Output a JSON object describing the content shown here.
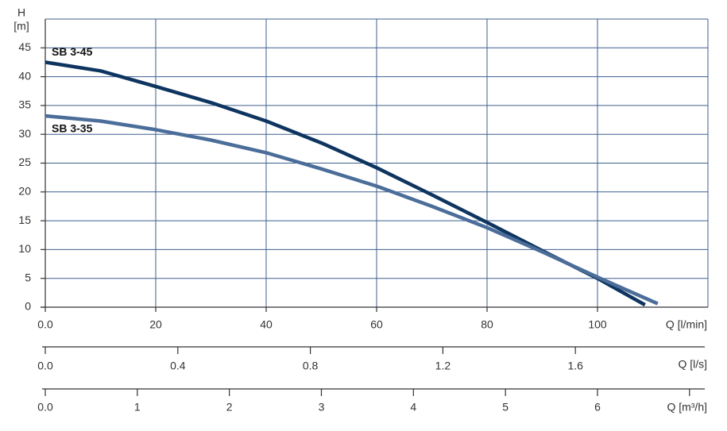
{
  "chart_data": {
    "type": "line",
    "ylabel": "H",
    "yunit": "[m]",
    "xlabel": "Q [l/min]",
    "xlim": [
      0,
      120
    ],
    "xticks": [
      {
        "value": 0,
        "label": "0.0"
      },
      20,
      40,
      60,
      80,
      100
    ],
    "ylim": [
      0,
      50
    ],
    "yticks": [
      0,
      5,
      10,
      15,
      20,
      25,
      30,
      35,
      40,
      45
    ],
    "x2label": "Q [l/s]",
    "x2lim": [
      0,
      2
    ],
    "x2ticks": [
      {
        "value": 0,
        "label": "0.0"
      },
      0.4,
      0.8,
      1.2,
      1.6
    ],
    "x3label": "Q [m³/h]",
    "x3lim": [
      0,
      7.2
    ],
    "x3ticks": [
      {
        "value": 0,
        "label": "0.0"
      },
      1,
      2,
      3,
      4,
      5,
      6,
      {
        "value": 7,
        "label": null
      }
    ],
    "grid": true,
    "series": [
      {
        "name": "SB 3-45",
        "color": "#0e3560",
        "x": [
          0,
          10,
          20,
          30,
          40,
          50,
          60,
          70,
          80,
          90,
          100,
          108.6
        ],
        "values": [
          42.5,
          41,
          38.3,
          35.5,
          32.3,
          28.5,
          24.2,
          19.5,
          14.7,
          9.8,
          5,
          0.4
        ]
      },
      {
        "name": "SB 3-35",
        "color": "#4b6d99",
        "x": [
          0,
          10,
          20,
          30,
          40,
          50,
          60,
          70,
          80,
          90,
          100,
          110.9
        ],
        "values": [
          33.2,
          32.3,
          30.8,
          29,
          26.8,
          24,
          21,
          17.5,
          13.8,
          9.6,
          5.2,
          0.6
        ]
      }
    ]
  }
}
